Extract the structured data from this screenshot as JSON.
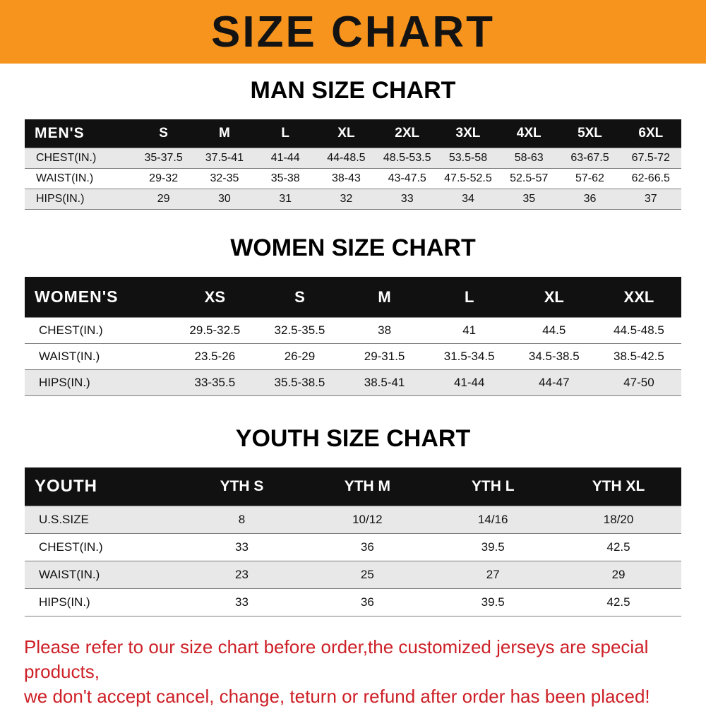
{
  "banner": {
    "title": "SIZE CHART",
    "bg_color": "#f7941e",
    "text_color": "#131313"
  },
  "sections": [
    {
      "heading": "MAN SIZE CHART",
      "table": {
        "header": [
          "MEN'S",
          "S",
          "M",
          "L",
          "XL",
          "2XL",
          "3XL",
          "4XL",
          "5XL",
          "6XL"
        ],
        "rows": [
          [
            "CHEST(IN.)",
            "35-37.5",
            "37.5-41",
            "41-44",
            "44-48.5",
            "48.5-53.5",
            "53.5-58",
            "58-63",
            "63-67.5",
            "67.5-72"
          ],
          [
            "WAIST(IN.)",
            "29-32",
            "32-35",
            "35-38",
            "38-43",
            "43-47.5",
            "47.5-52.5",
            "52.5-57",
            "57-62",
            "62-66.5"
          ],
          [
            "HIPS(IN.)",
            "29",
            "30",
            "31",
            "32",
            "33",
            "34",
            "35",
            "36",
            "37"
          ]
        ]
      }
    },
    {
      "heading": "WOMEN SIZE CHART",
      "table": {
        "header": [
          "WOMEN'S",
          "XS",
          "S",
          "M",
          "L",
          "XL",
          "XXL"
        ],
        "rows": [
          [
            "CHEST(IN.)",
            "29.5-32.5",
            "32.5-35.5",
            "38",
            "41",
            "44.5",
            "44.5-48.5"
          ],
          [
            "WAIST(IN.)",
            "23.5-26",
            "26-29",
            "29-31.5",
            "31.5-34.5",
            "34.5-38.5",
            "38.5-42.5"
          ],
          [
            "HIPS(IN.)",
            "33-35.5",
            "35.5-38.5",
            "38.5-41",
            "41-44",
            "44-47",
            "47-50"
          ]
        ]
      }
    },
    {
      "heading": "YOUTH SIZE CHART",
      "table": {
        "header": [
          "YOUTH",
          "YTH S",
          "YTH M",
          "YTH L",
          "YTH XL"
        ],
        "rows": [
          [
            "U.S.SIZE",
            "8",
            "10/12",
            "14/16",
            "18/20"
          ],
          [
            "CHEST(IN.)",
            "33",
            "36",
            "39.5",
            "42.5"
          ],
          [
            "WAIST(IN.)",
            "23",
            "25",
            "27",
            "29"
          ],
          [
            "HIPS(IN.)",
            "33",
            "36",
            "39.5",
            "42.5"
          ]
        ]
      }
    }
  ],
  "footer": {
    "line1": "Please refer to our size chart before order,the customized jerseys are special products,",
    "line2": "we don't accept cancel, change, teturn or refund after order has been placed!",
    "text_color": "#cd2027"
  }
}
